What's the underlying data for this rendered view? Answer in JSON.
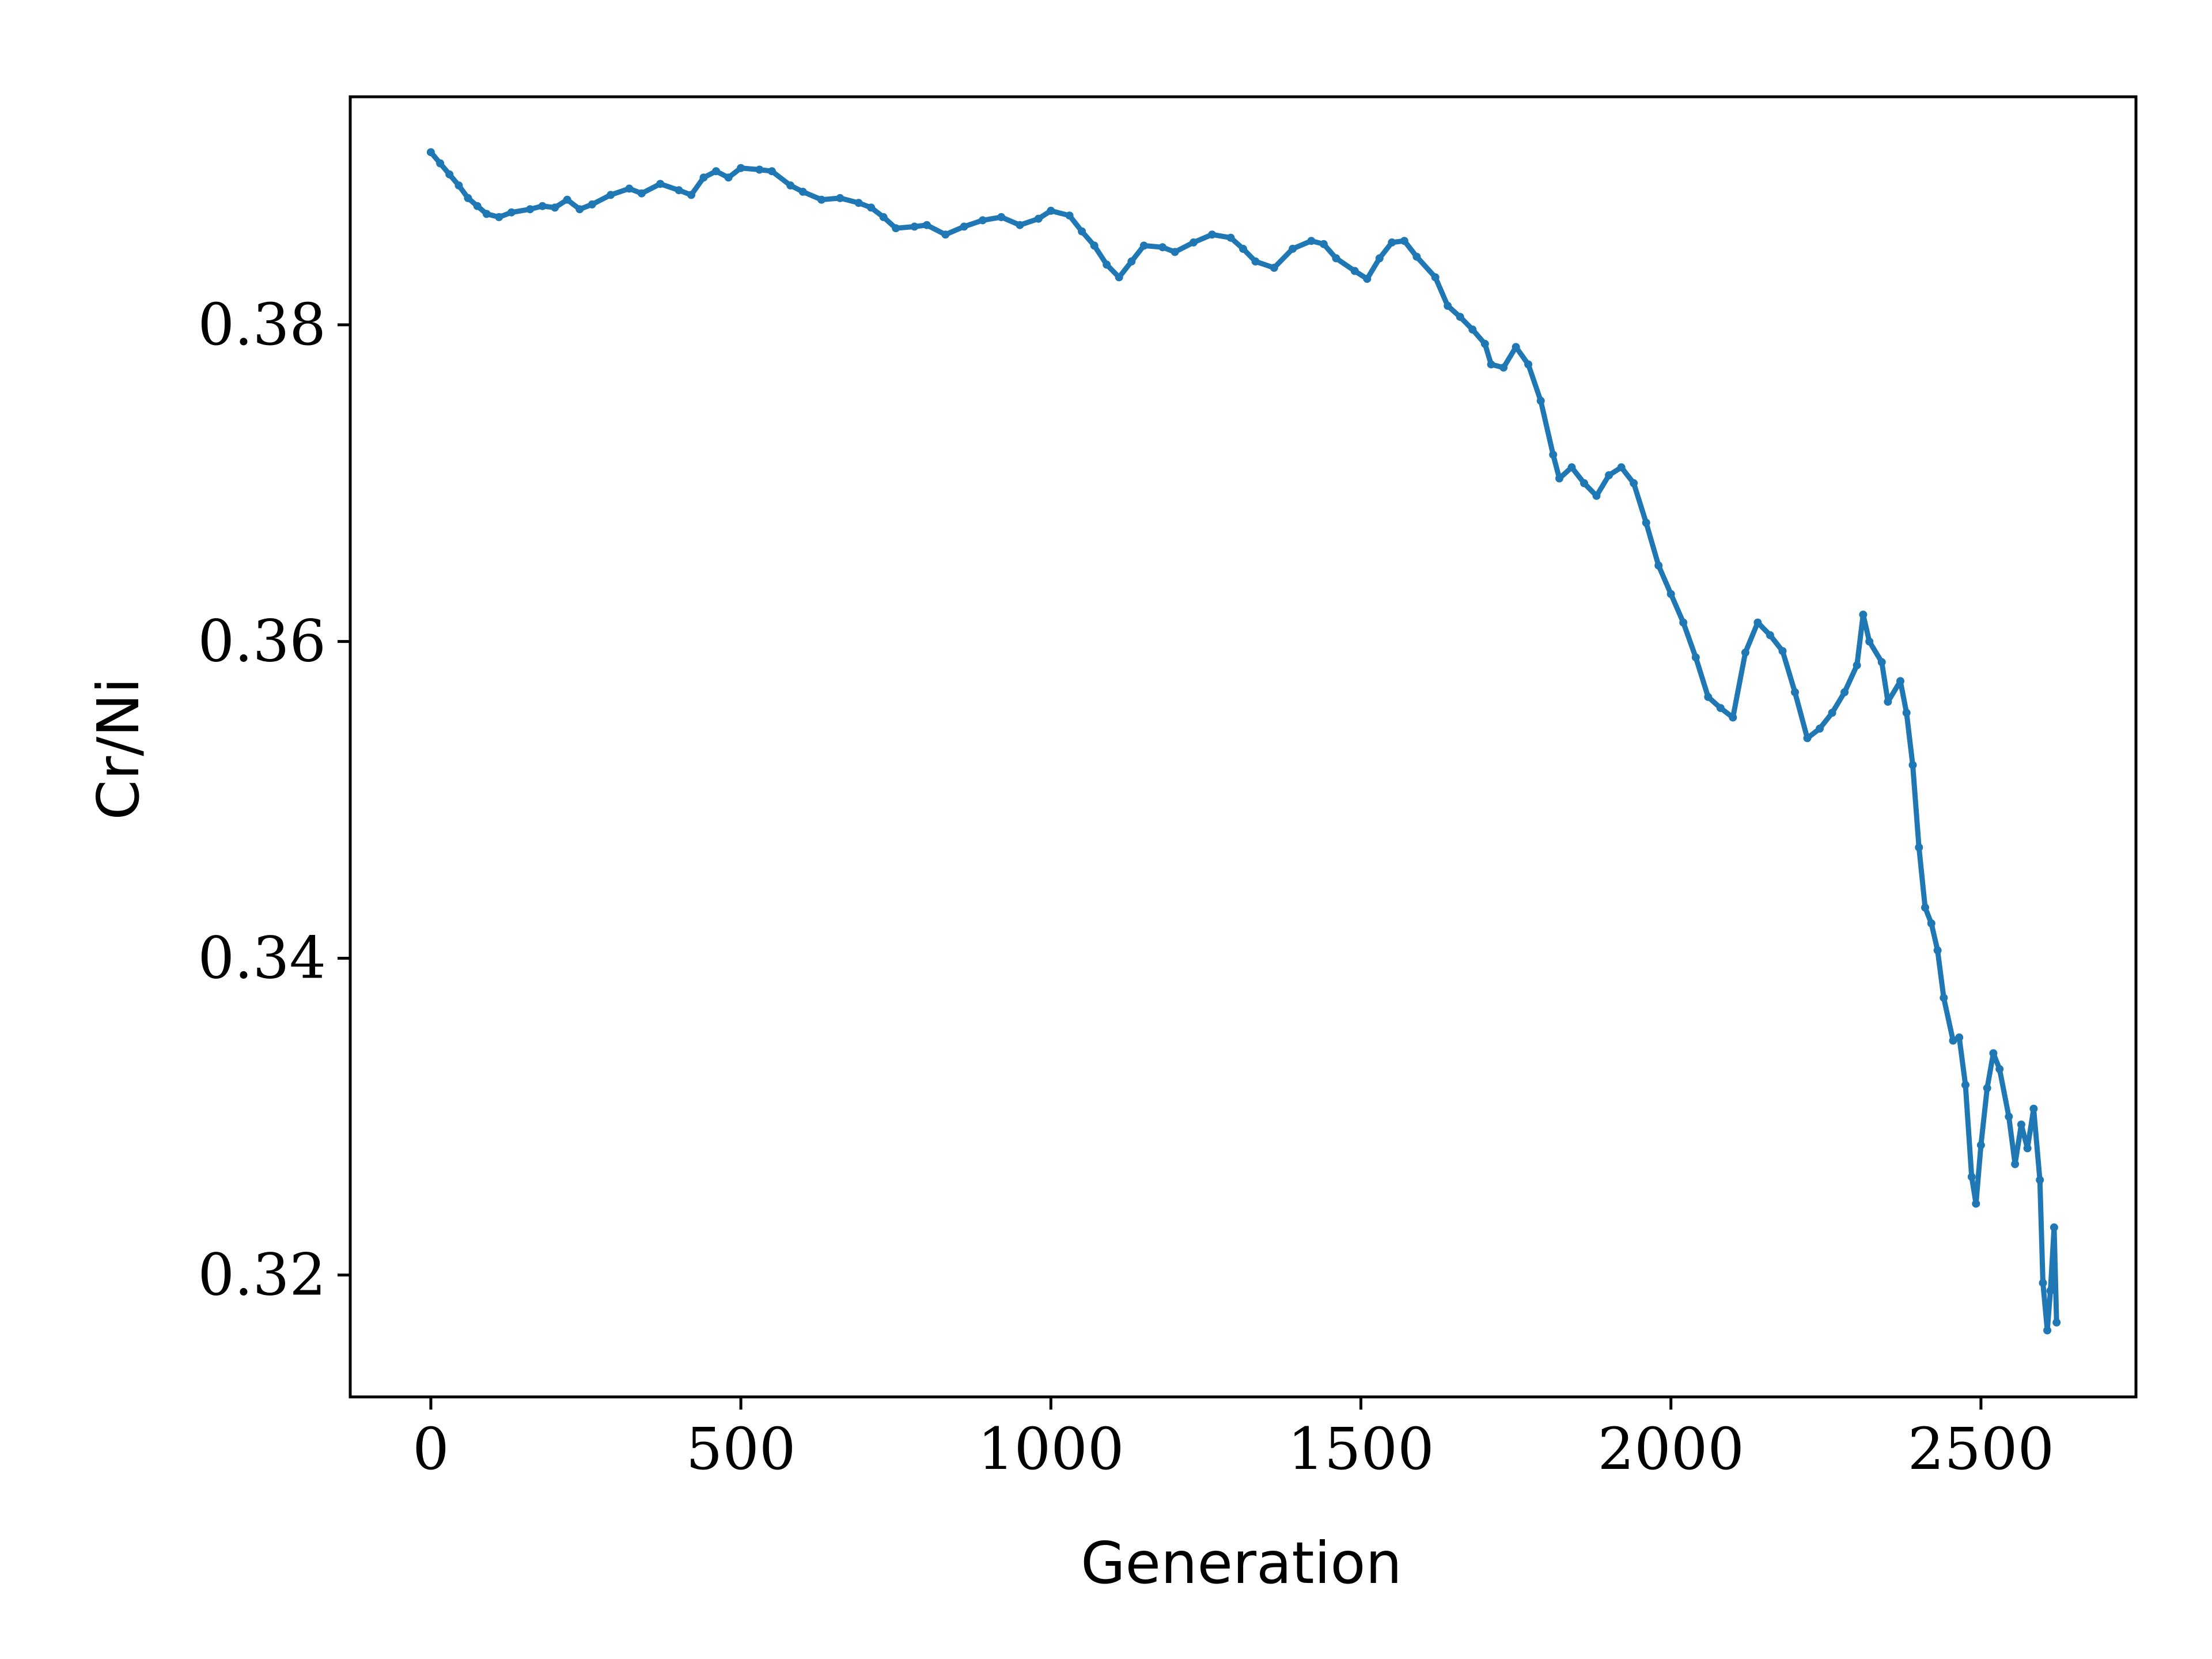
{
  "chart_data": {
    "type": "line",
    "title": "",
    "xlabel": "Generation",
    "ylabel": "Cr/Ni",
    "xlim": [
      -130,
      2750
    ],
    "ylim": [
      0.3123,
      0.3944
    ],
    "xticks": [
      0,
      500,
      1000,
      1500,
      2000,
      2500
    ],
    "yticks": [
      0.32,
      0.34,
      0.36,
      0.38
    ],
    "xtick_labels": [
      "0",
      "500",
      "1000",
      "1500",
      "2000",
      "2500"
    ],
    "ytick_labels": [
      "0.32",
      "0.34",
      "0.36",
      "0.38"
    ],
    "grid": false,
    "legend": "none",
    "series": [
      {
        "color": "#1f77b4",
        "marker": "small dots",
        "points": [
          [
            0,
            0.3909
          ],
          [
            15,
            0.3902
          ],
          [
            30,
            0.3895
          ],
          [
            45,
            0.3888
          ],
          [
            60,
            0.388
          ],
          [
            75,
            0.3875
          ],
          [
            90,
            0.387
          ],
          [
            110,
            0.3868
          ],
          [
            130,
            0.3871
          ],
          [
            160,
            0.3873
          ],
          [
            180,
            0.3875
          ],
          [
            200,
            0.3874
          ],
          [
            220,
            0.3879
          ],
          [
            240,
            0.3873
          ],
          [
            260,
            0.3876
          ],
          [
            290,
            0.3882
          ],
          [
            320,
            0.3886
          ],
          [
            340,
            0.3883
          ],
          [
            370,
            0.3889
          ],
          [
            400,
            0.3885
          ],
          [
            420,
            0.3882
          ],
          [
            440,
            0.3893
          ],
          [
            460,
            0.3897
          ],
          [
            480,
            0.3893
          ],
          [
            500,
            0.3899
          ],
          [
            530,
            0.3898
          ],
          [
            550,
            0.3897
          ],
          [
            580,
            0.3888
          ],
          [
            600,
            0.3884
          ],
          [
            630,
            0.3879
          ],
          [
            660,
            0.388
          ],
          [
            690,
            0.3877
          ],
          [
            710,
            0.3874
          ],
          [
            730,
            0.3868
          ],
          [
            750,
            0.3861
          ],
          [
            780,
            0.3862
          ],
          [
            800,
            0.3863
          ],
          [
            830,
            0.3857
          ],
          [
            860,
            0.3862
          ],
          [
            890,
            0.3866
          ],
          [
            920,
            0.3868
          ],
          [
            950,
            0.3863
          ],
          [
            980,
            0.3867
          ],
          [
            1000,
            0.3872
          ],
          [
            1030,
            0.3869
          ],
          [
            1050,
            0.3859
          ],
          [
            1070,
            0.385
          ],
          [
            1090,
            0.3838
          ],
          [
            1110,
            0.383
          ],
          [
            1130,
            0.384
          ],
          [
            1150,
            0.385
          ],
          [
            1180,
            0.3849
          ],
          [
            1200,
            0.3846
          ],
          [
            1230,
            0.3852
          ],
          [
            1260,
            0.3857
          ],
          [
            1290,
            0.3855
          ],
          [
            1310,
            0.3848
          ],
          [
            1330,
            0.384
          ],
          [
            1360,
            0.3836
          ],
          [
            1390,
            0.3848
          ],
          [
            1420,
            0.3853
          ],
          [
            1440,
            0.3851
          ],
          [
            1460,
            0.3842
          ],
          [
            1490,
            0.3834
          ],
          [
            1510,
            0.3829
          ],
          [
            1530,
            0.3842
          ],
          [
            1550,
            0.3852
          ],
          [
            1570,
            0.3853
          ],
          [
            1590,
            0.3843
          ],
          [
            1620,
            0.383
          ],
          [
            1640,
            0.3812
          ],
          [
            1660,
            0.3805
          ],
          [
            1680,
            0.3797
          ],
          [
            1700,
            0.3788
          ],
          [
            1710,
            0.3775
          ],
          [
            1730,
            0.3773
          ],
          [
            1750,
            0.3786
          ],
          [
            1770,
            0.3775
          ],
          [
            1790,
            0.3752
          ],
          [
            1810,
            0.3718
          ],
          [
            1820,
            0.3703
          ],
          [
            1840,
            0.371
          ],
          [
            1860,
            0.37
          ],
          [
            1880,
            0.3692
          ],
          [
            1900,
            0.3705
          ],
          [
            1920,
            0.371
          ],
          [
            1940,
            0.37
          ],
          [
            1960,
            0.3675
          ],
          [
            1980,
            0.3648
          ],
          [
            2000,
            0.363
          ],
          [
            2020,
            0.3612
          ],
          [
            2040,
            0.359
          ],
          [
            2060,
            0.3565
          ],
          [
            2080,
            0.3558
          ],
          [
            2100,
            0.3552
          ],
          [
            2120,
            0.3593
          ],
          [
            2140,
            0.3612
          ],
          [
            2160,
            0.3604
          ],
          [
            2180,
            0.3594
          ],
          [
            2200,
            0.3568
          ],
          [
            2220,
            0.3539
          ],
          [
            2240,
            0.3545
          ],
          [
            2260,
            0.3555
          ],
          [
            2280,
            0.3568
          ],
          [
            2300,
            0.3585
          ],
          [
            2310,
            0.3617
          ],
          [
            2320,
            0.36
          ],
          [
            2340,
            0.3587
          ],
          [
            2350,
            0.3562
          ],
          [
            2370,
            0.3575
          ],
          [
            2380,
            0.3555
          ],
          [
            2390,
            0.3522
          ],
          [
            2400,
            0.347
          ],
          [
            2410,
            0.3432
          ],
          [
            2420,
            0.3422
          ],
          [
            2430,
            0.3405
          ],
          [
            2440,
            0.3375
          ],
          [
            2455,
            0.3348
          ],
          [
            2465,
            0.335
          ],
          [
            2475,
            0.332
          ],
          [
            2485,
            0.3262
          ],
          [
            2492,
            0.3245
          ],
          [
            2500,
            0.3282
          ],
          [
            2510,
            0.3318
          ],
          [
            2520,
            0.334
          ],
          [
            2530,
            0.333
          ],
          [
            2545,
            0.33
          ],
          [
            2555,
            0.327
          ],
          [
            2565,
            0.3295
          ],
          [
            2575,
            0.328
          ],
          [
            2585,
            0.3305
          ],
          [
            2595,
            0.326
          ],
          [
            2600,
            0.3195
          ],
          [
            2607,
            0.3165
          ],
          [
            2612,
            0.319
          ],
          [
            2618,
            0.323
          ],
          [
            2622,
            0.317
          ]
        ]
      }
    ]
  }
}
